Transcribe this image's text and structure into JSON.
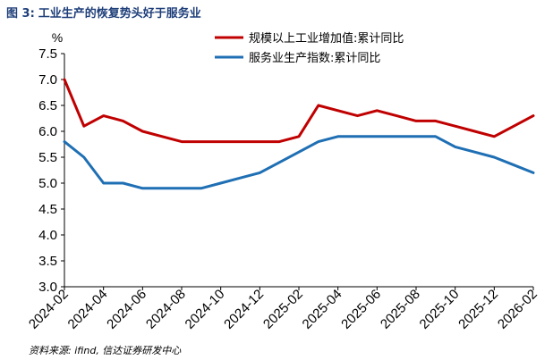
{
  "figure": {
    "number": "图 3:",
    "title": "工业生产的恢复势头好于服务业"
  },
  "source": "资料来源: ifind, 信达证券研发中心",
  "chart_data": {
    "type": "line",
    "yunit": "%",
    "ylim": [
      3.0,
      7.5
    ],
    "yticks": [
      "3.0",
      "3.5",
      "4.0",
      "4.5",
      "5.0",
      "5.5",
      "6.0",
      "6.5",
      "7.0",
      "7.5"
    ],
    "xlim": [
      "2024-02",
      "2026-02"
    ],
    "xticks": [
      "2024-02",
      "2024-04",
      "2024-06",
      "2024-08",
      "2024-10",
      "2024-12",
      "2025-02",
      "2025-04",
      "2025-06",
      "2025-08",
      "2025-10",
      "2025-12",
      "2026-02"
    ],
    "grid": false,
    "legend_position": "top-right",
    "series": [
      {
        "name": "规模以上工业增加值:累计同比",
        "color": "#c00000",
        "points": [
          [
            "2024-02",
            7.0
          ],
          [
            "2024-03",
            6.1
          ],
          [
            "2024-04",
            6.3
          ],
          [
            "2024-05",
            6.2
          ],
          [
            "2024-06",
            6.0
          ],
          [
            "2024-07",
            5.9
          ],
          [
            "2024-08",
            5.8
          ],
          [
            "2024-09",
            5.8
          ],
          [
            "2024-10",
            5.8
          ],
          [
            "2024-11",
            5.8
          ],
          [
            "2024-12",
            5.8
          ],
          [
            "2025-01",
            5.8
          ],
          [
            "2025-02",
            5.9
          ],
          [
            "2025-03",
            6.5
          ],
          [
            "2025-04",
            6.4
          ],
          [
            "2025-05",
            6.3
          ],
          [
            "2025-06",
            6.4
          ],
          [
            "2025-07",
            6.3
          ],
          [
            "2025-08",
            6.2
          ],
          [
            "2025-09",
            6.2
          ],
          [
            "2025-10",
            6.1
          ],
          [
            "2025-11",
            6.0
          ],
          [
            "2025-12",
            5.9
          ],
          [
            "2026-01",
            6.1
          ],
          [
            "2026-02",
            6.3
          ]
        ]
      },
      {
        "name": "服务业生产指数:累计同比",
        "color": "#1f6fb4",
        "points": [
          [
            "2024-02",
            5.8
          ],
          [
            "2024-03",
            5.5
          ],
          [
            "2024-04",
            5.0
          ],
          [
            "2024-05",
            5.0
          ],
          [
            "2024-06",
            4.9
          ],
          [
            "2024-07",
            4.9
          ],
          [
            "2024-08",
            4.9
          ],
          [
            "2024-09",
            4.9
          ],
          [
            "2024-10",
            5.0
          ],
          [
            "2024-11",
            5.1
          ],
          [
            "2024-12",
            5.2
          ],
          [
            "2025-01",
            5.4
          ],
          [
            "2025-02",
            5.6
          ],
          [
            "2025-03",
            5.8
          ],
          [
            "2025-04",
            5.9
          ],
          [
            "2025-05",
            5.9
          ],
          [
            "2025-06",
            5.9
          ],
          [
            "2025-07",
            5.9
          ],
          [
            "2025-08",
            5.9
          ],
          [
            "2025-09",
            5.9
          ],
          [
            "2025-10",
            5.7
          ],
          [
            "2025-11",
            5.6
          ],
          [
            "2025-12",
            5.5
          ],
          [
            "2026-01",
            5.35
          ],
          [
            "2026-02",
            5.2
          ]
        ]
      }
    ]
  }
}
